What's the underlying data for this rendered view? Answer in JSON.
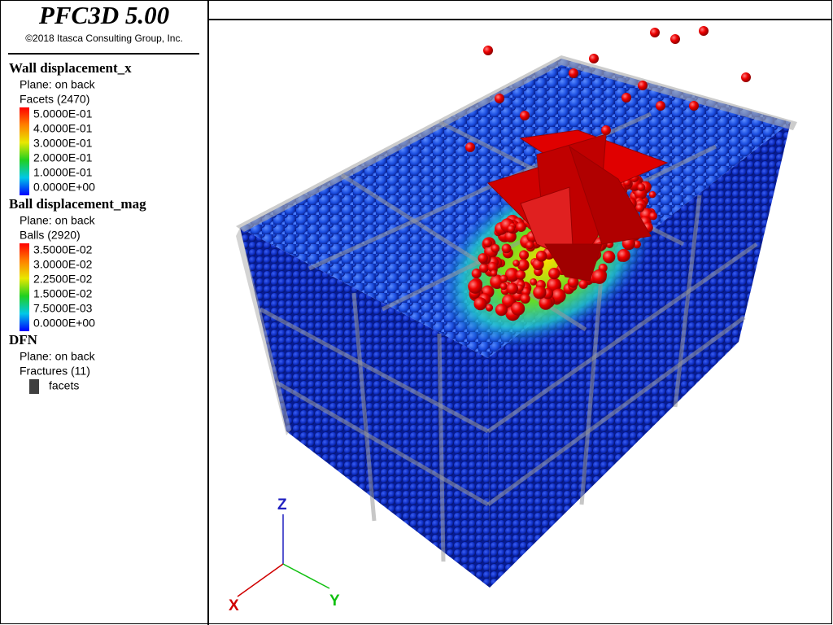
{
  "header": {
    "title": "PFC3D 5.00",
    "copyright": "©2018 Itasca Consulting Group, Inc."
  },
  "legend": [
    {
      "title": "Wall displacement_x",
      "lines": [
        "Plane: on back",
        "Facets (2470)"
      ],
      "entries": [
        "5.0000E-01",
        "4.0000E-01",
        "3.0000E-01",
        "2.0000E-01",
        "1.0000E-01",
        "0.0000E+00"
      ]
    },
    {
      "title": "Ball displacement_mag",
      "lines": [
        "Plane: on back",
        "Balls (2920)"
      ],
      "entries": [
        "3.5000E-02",
        "3.0000E-02",
        "2.2500E-02",
        "1.5000E-02",
        "7.5000E-03",
        "0.0000E+00"
      ]
    },
    {
      "title": "DFN",
      "lines": [
        "Plane: on back",
        "Fractures (11)"
      ],
      "entries": [
        "facets"
      ]
    }
  ],
  "axes": {
    "x": "X",
    "y": "Y",
    "z": "Z"
  }
}
